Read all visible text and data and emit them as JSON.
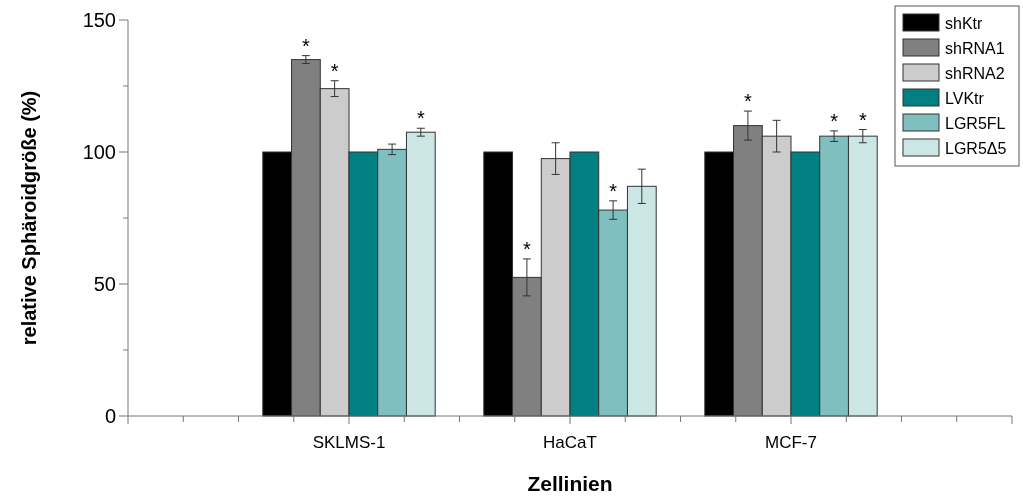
{
  "chart_data": {
    "type": "bar",
    "xlabel": "Zellinien",
    "ylabel": "relative Sphäroidgröße (%)",
    "categories": [
      null,
      "SKLMS-1",
      "HaCaT",
      "MCF-7",
      null
    ],
    "series": [
      {
        "name": "shKtr",
        "color": "#000000",
        "values": [
          null,
          100,
          100,
          100,
          null
        ]
      },
      {
        "name": "shRNA1",
        "color": "#808080",
        "values": [
          null,
          135,
          52.5,
          110,
          null
        ],
        "errors": [
          null,
          1.5,
          7,
          5.5,
          null
        ],
        "value_labels": [
          null,
          "*",
          "*",
          "*",
          null
        ]
      },
      {
        "name": "shRNA2",
        "color": "#cccccc",
        "values": [
          null,
          124,
          97.5,
          106,
          null
        ],
        "errors": [
          null,
          3,
          6,
          6,
          null
        ],
        "value_labels": [
          null,
          "*",
          null,
          null,
          null
        ]
      },
      {
        "name": "LVKtr",
        "color": "#008080",
        "values": [
          null,
          100,
          100,
          100,
          null
        ]
      },
      {
        "name": "LGR5FL",
        "color": "#80bfbf",
        "values": [
          null,
          101,
          78,
          106,
          null
        ],
        "errors": [
          null,
          2,
          3.5,
          2,
          null
        ],
        "value_labels": [
          null,
          null,
          "*",
          "*",
          null
        ]
      },
      {
        "name": "LGR5Δ5",
        "color": "#cce6e6",
        "values": [
          null,
          107.5,
          87,
          106,
          null
        ],
        "errors": [
          null,
          1.5,
          6.5,
          2.5,
          null
        ],
        "value_labels": [
          null,
          "*",
          null,
          "*",
          null
        ]
      }
    ],
    "ylim": [
      0,
      150
    ],
    "yticks": [
      0,
      {
        "value": 25,
        "label": null
      },
      50,
      {
        "value": 75,
        "label": null
      },
      100,
      {
        "value": 125,
        "label": null
      },
      150
    ],
    "grid": false,
    "legend": "top right"
  }
}
